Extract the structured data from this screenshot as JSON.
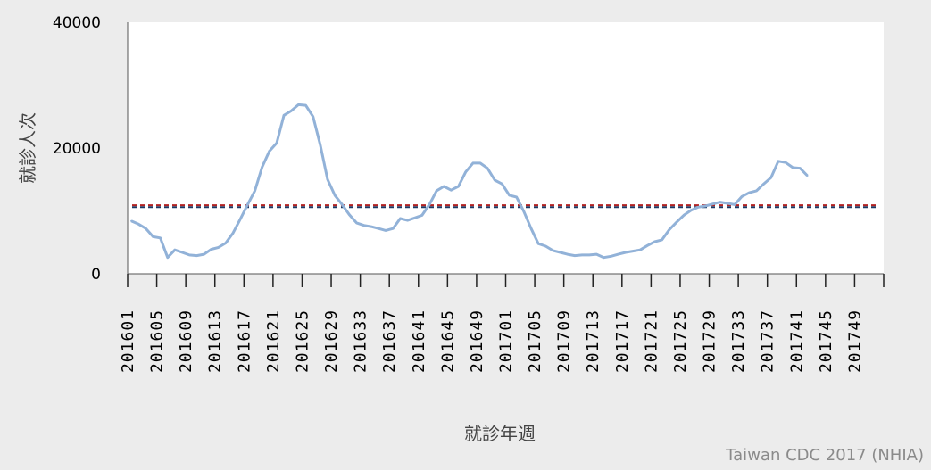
{
  "chart_data": {
    "type": "line",
    "title": "",
    "xlabel": "就診年週",
    "ylabel": "就診人次",
    "ylim": [
      0,
      40000
    ],
    "y_ticks": [
      "0",
      "20000",
      "40000"
    ],
    "x_tick_labels": [
      "201601",
      "201605",
      "201609",
      "201613",
      "201617",
      "201621",
      "201625",
      "201629",
      "201633",
      "201637",
      "201641",
      "201645",
      "201649",
      "201701",
      "201705",
      "201709",
      "201713",
      "201717",
      "201721",
      "201725",
      "201729",
      "201733",
      "201737",
      "201741",
      "201745",
      "201749"
    ],
    "x_categories_count": 104,
    "grid": false,
    "legend": "none",
    "series": [
      {
        "color": "#92b2d8",
        "values": [
          8400,
          7900,
          7200,
          5900,
          5700,
          2600,
          3800,
          3400,
          3000,
          2900,
          3100,
          3900,
          4200,
          4900,
          6500,
          8700,
          11000,
          13200,
          17000,
          19500,
          20800,
          25200,
          25900,
          26900,
          26800,
          25000,
          20500,
          15000,
          12500,
          11000,
          9400,
          8100,
          7700,
          7500,
          7200,
          6900,
          7200,
          8800,
          8500,
          8900,
          9300,
          11000,
          13200,
          13900,
          13300,
          13900,
          16200,
          17600,
          17600,
          16800,
          14900,
          14300,
          12500,
          12200,
          9900,
          7200,
          4800,
          4400,
          3700,
          3400,
          3100,
          2900,
          3000,
          3000,
          3100,
          2600,
          2800,
          3100,
          3400,
          3600,
          3800,
          4500,
          5100,
          5400,
          7000,
          8200,
          9300,
          10100,
          10600,
          10800,
          11100,
          11400,
          11200,
          11000,
          12300,
          12900,
          13200,
          14300,
          15300,
          17900,
          17700,
          16900,
          16800,
          15600
        ]
      }
    ],
    "reference_lines": [
      {
        "y": 10600,
        "color": "#1a3a66",
        "style": "dashed"
      },
      {
        "y": 10900,
        "color": "#b22222",
        "style": "dashed"
      }
    ]
  },
  "source_credit": "Taiwan CDC 2017 (NHIA)"
}
